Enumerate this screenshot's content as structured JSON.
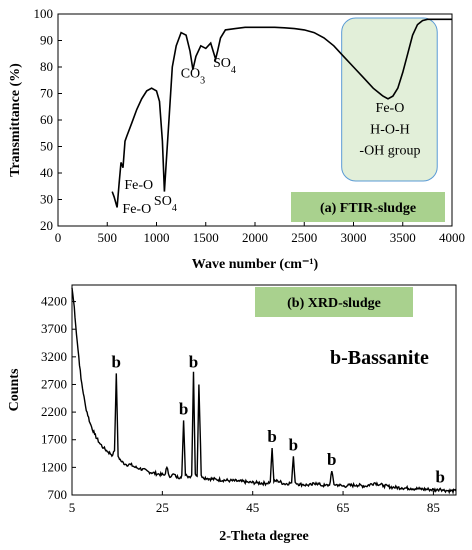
{
  "chart_data": [
    {
      "type": "line",
      "title": "(a) FTIR-sludge",
      "xlabel": "Wave number (cm⁻¹)",
      "ylabel": "Transmittance (%)",
      "xlim": [
        0,
        4000
      ],
      "ylim": [
        20,
        100
      ],
      "xticks": [
        0,
        500,
        1000,
        1500,
        2000,
        2500,
        3000,
        3500,
        4000
      ],
      "yticks": [
        20,
        30,
        40,
        50,
        60,
        70,
        80,
        90,
        100
      ],
      "legend_box_color": "#a9d18e",
      "highlight_color": "#e2efd9",
      "line_color": "#000000",
      "annotations": [
        {
          "text": "Fe-O",
          "x": 820,
          "y": 34
        },
        {
          "text": "Fe-O",
          "x": 800,
          "y": 25
        },
        {
          "text": "SO",
          "sub": "4",
          "x": 1090,
          "y": 28
        },
        {
          "text": "CO",
          "sub": "3",
          "x": 1370,
          "y": 76
        },
        {
          "text": "SO",
          "sub": "4",
          "x": 1690,
          "y": 80
        },
        {
          "text": "Fe-O",
          "x": 3370,
          "y": 63
        },
        {
          "text": "H-O-H",
          "x": 3370,
          "y": 55
        },
        {
          "text": "-OH group",
          "x": 3370,
          "y": 47
        }
      ],
      "series": [
        {
          "x": [
            550,
            570,
            600,
            620,
            640,
            660,
            680,
            700,
            750,
            800,
            850,
            900,
            950,
            1000,
            1030,
            1060,
            1080,
            1100,
            1130,
            1160,
            1200,
            1250,
            1300,
            1340,
            1370,
            1400,
            1450,
            1500,
            1550,
            1600,
            1620,
            1650,
            1700,
            1800,
            1900,
            2000,
            2100,
            2200,
            2300,
            2400,
            2500,
            2600,
            2700,
            2800,
            2900,
            3000,
            3100,
            3200,
            3300,
            3350,
            3400,
            3450,
            3500,
            3550,
            3600,
            3650,
            3700,
            3750,
            3800,
            3900,
            4000
          ],
          "y": [
            33,
            31,
            27,
            36,
            44,
            42,
            52,
            54,
            59,
            64,
            68,
            71,
            72,
            71,
            67,
            52,
            33,
            45,
            62,
            80,
            88,
            93,
            92,
            86,
            79,
            84,
            88,
            87,
            89,
            83,
            86,
            91,
            94,
            94.5,
            95,
            95,
            95,
            95,
            94.8,
            94.5,
            94,
            93,
            91,
            88,
            84,
            80,
            76,
            72,
            69,
            68,
            69,
            72,
            78,
            85,
            92,
            96,
            97.5,
            98,
            98,
            98,
            98
          ]
        }
      ]
    },
    {
      "type": "line",
      "title": "(b) XRD-sludge",
      "xlabel": "2-Theta degree",
      "ylabel": "Counts",
      "xlim": [
        5,
        90
      ],
      "ylim": [
        700,
        4500
      ],
      "xticks": [
        5,
        25,
        45,
        65,
        85
      ],
      "yticks": [
        700,
        1200,
        1700,
        2200,
        2700,
        3200,
        3700,
        4200
      ],
      "legend_box_color": "#a9d18e",
      "line_color": "#000000",
      "phase_label": "b-Bassanite",
      "peak_label": "b",
      "peaks": [
        {
          "x": 14.8,
          "y": 2900
        },
        {
          "x": 29.7,
          "y": 2050
        },
        {
          "x": 31.9,
          "y": 2900
        },
        {
          "x": 49.3,
          "y": 1550
        },
        {
          "x": 54.0,
          "y": 1400
        },
        {
          "x": 62.5,
          "y": 1130
        },
        {
          "x": 86.5,
          "y": 820
        }
      ],
      "series": [
        {
          "x": [
            5,
            5.5,
            6,
            6.5,
            7,
            8,
            9,
            10,
            11,
            12,
            13,
            14,
            14.4,
            14.8,
            15.2,
            16,
            17,
            18,
            19,
            20,
            22,
            24,
            25.5,
            26,
            26.5,
            27,
            27.5,
            28,
            29,
            29.3,
            29.7,
            30.1,
            30.5,
            31,
            31.5,
            31.9,
            32.3,
            32.7,
            33.1,
            33.6,
            34,
            35,
            37,
            40,
            42,
            44,
            46,
            48,
            48.9,
            49.3,
            49.7,
            50.5,
            52,
            53.6,
            54.0,
            54.4,
            55,
            56,
            57,
            58,
            59,
            60,
            61,
            62,
            62.5,
            63,
            64,
            65,
            66,
            68,
            70,
            72,
            74,
            76,
            78,
            80,
            82,
            84,
            86,
            86.5,
            87,
            88,
            90
          ],
          "y": [
            4450,
            4100,
            3600,
            3200,
            2800,
            2300,
            2000,
            1800,
            1650,
            1550,
            1480,
            1420,
            1500,
            2900,
            1400,
            1300,
            1250,
            1250,
            1200,
            1180,
            1120,
            1080,
            1060,
            1200,
            1050,
            1040,
            1080,
            1030,
            1020,
            1060,
            2050,
            1060,
            1040,
            1030,
            1060,
            2930,
            1080,
            1040,
            2700,
            1060,
            1020,
            1000,
            980,
            960,
            950,
            930,
            920,
            910,
            940,
            1550,
            940,
            960,
            900,
            920,
            1400,
            930,
            900,
            890,
            880,
            880,
            920,
            880,
            870,
            880,
            1130,
            890,
            880,
            860,
            870,
            880,
            860,
            920,
            870,
            840,
            830,
            820,
            810,
            800,
            790,
            820,
            790,
            780,
            770
          ]
        }
      ]
    }
  ]
}
